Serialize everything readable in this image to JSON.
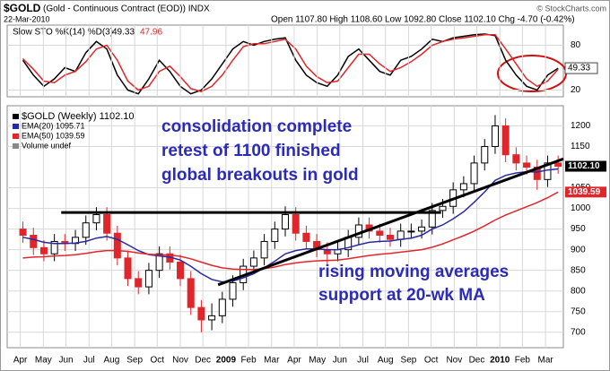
{
  "chart_data": [
    {
      "type": "stochastic",
      "symbol": "$GOLD",
      "description": "(Gold - Continuous Contract (EOD)) INDX",
      "date": "22-Mar-2010",
      "quote": "Open 1107.80  High 1108.60  Low 1092.80  Close 1102.10  Chg -4.70 (-0.42%)",
      "credit": "© StockCharts.com",
      "title": "Slow STO %K(14) %D(3)",
      "x": [
        1,
        3,
        5,
        7,
        9,
        11,
        13,
        15,
        17,
        19,
        21,
        23,
        25,
        27,
        29,
        31,
        33,
        35,
        37,
        39,
        41,
        43,
        45,
        47,
        49,
        51,
        53,
        55,
        57,
        59,
        61,
        63,
        65,
        67,
        69,
        71,
        73,
        75,
        77,
        79,
        81,
        83,
        85,
        87,
        89,
        91,
        93,
        95,
        97,
        99,
        101,
        103
      ],
      "xlim": [
        -2,
        104
      ],
      "ylim": [
        11,
        107
      ],
      "yticks": [
        20,
        80
      ],
      "grid": true,
      "series": [
        {
          "name": "%K",
          "color": "#000000",
          "values": [
            60,
            40,
            25,
            35,
            50,
            45,
            70,
            85,
            75,
            40,
            20,
            15,
            35,
            60,
            45,
            25,
            15,
            20,
            35,
            55,
            75,
            85,
            80,
            85,
            88,
            90,
            60,
            40,
            30,
            25,
            40,
            65,
            75,
            60,
            45,
            40,
            60,
            65,
            75,
            88,
            85,
            90,
            92,
            94,
            95,
            93,
            60,
            40,
            25,
            20,
            40,
            49.33
          ]
        },
        {
          "name": "%D",
          "color": "#e0262b",
          "values": [
            62,
            48,
            32,
            30,
            40,
            45,
            58,
            75,
            80,
            60,
            32,
            20,
            25,
            45,
            52,
            38,
            22,
            18,
            25,
            40,
            60,
            78,
            82,
            82,
            85,
            88,
            75,
            52,
            38,
            30,
            32,
            50,
            68,
            68,
            55,
            45,
            50,
            58,
            68,
            80,
            85,
            88,
            90,
            92,
            94,
            94,
            75,
            55,
            35,
            25,
            32,
            47.96
          ]
        }
      ]
    },
    {
      "type": "candlestick",
      "x": [
        1,
        3,
        5,
        7,
        9,
        11,
        13,
        15,
        17,
        19,
        21,
        23,
        25,
        27,
        29,
        31,
        33,
        35,
        37,
        39,
        41,
        43,
        45,
        47,
        49,
        51,
        53,
        55,
        57,
        59,
        61,
        63,
        65,
        67,
        69,
        71,
        73,
        75,
        77,
        79,
        81,
        83,
        85,
        87,
        89,
        91,
        93,
        95,
        97,
        99,
        101,
        103
      ],
      "xlim": [
        -2,
        104
      ],
      "ylim": [
        680,
        1240
      ],
      "yticks": [
        700,
        750,
        800,
        850,
        900,
        950,
        1000,
        1050,
        1150,
        1200
      ],
      "xticks": [
        {
          "value": 0.5,
          "label": "Apr"
        },
        {
          "value": 4.9,
          "label": "May"
        },
        {
          "value": 9.2,
          "label": "Jun"
        },
        {
          "value": 13.6,
          "label": "Jul"
        },
        {
          "value": 17.9,
          "label": "Aug"
        },
        {
          "value": 22.3,
          "label": "Sep"
        },
        {
          "value": 26.6,
          "label": "Oct"
        },
        {
          "value": 31.0,
          "label": "Nov"
        },
        {
          "value": 35.3,
          "label": "Dec"
        },
        {
          "value": 39.7,
          "label": "2009"
        },
        {
          "value": 44.0,
          "label": "Feb"
        },
        {
          "value": 48.4,
          "label": "Mar"
        },
        {
          "value": 52.7,
          "label": "Apr"
        },
        {
          "value": 57.1,
          "label": "May"
        },
        {
          "value": 61.4,
          "label": "Jun"
        },
        {
          "value": 65.8,
          "label": "Jul"
        },
        {
          "value": 70.1,
          "label": "Aug"
        },
        {
          "value": 74.5,
          "label": "Sep"
        },
        {
          "value": 78.8,
          "label": "Oct"
        },
        {
          "value": 83.2,
          "label": "Nov"
        },
        {
          "value": 87.5,
          "label": "Dec"
        },
        {
          "value": 91.9,
          "label": "2010"
        },
        {
          "value": 96.2,
          "label": "Feb"
        },
        {
          "value": 100.6,
          "label": "Mar"
        }
      ],
      "grid": true,
      "candles": {
        "name": "$GOLD (Weekly) 1102.10",
        "last_label": "1102.10",
        "up_color": "#000000",
        "down_color": "#e0262b",
        "open": [
          950,
          935,
          905,
          890,
          920,
          915,
          930,
          965,
          985,
          940,
          880,
          830,
          810,
          850,
          890,
          870,
          830,
          760,
          730,
          740,
          780,
          820,
          860,
          880,
          920,
          950,
          985,
          940,
          920,
          900,
          890,
          900,
          930,
          960,
          945,
          935,
          925,
          945,
          945,
          955,
          995,
          1005,
          1045,
          1060,
          1110,
          1150,
          1200,
          1130,
          1110,
          1100,
          1070,
          1110
        ],
        "high": [
          968,
          953,
          923,
          938,
          938,
          948,
          983,
          1003,
          1003,
          958,
          898,
          848,
          868,
          908,
          908,
          888,
          848,
          778,
          770,
          798,
          838,
          878,
          898,
          938,
          968,
          1005,
          1003,
          958,
          938,
          918,
          918,
          948,
          978,
          978,
          963,
          953,
          963,
          963,
          973,
          1013,
          1023,
          1063,
          1078,
          1128,
          1168,
          1226,
          1218,
          1148,
          1128,
          1118,
          1128,
          1128
        ],
        "low": [
          917,
          887,
          872,
          872,
          897,
          897,
          912,
          947,
          922,
          862,
          812,
          792,
          792,
          832,
          852,
          812,
          742,
          700,
          705,
          722,
          762,
          802,
          842,
          862,
          902,
          932,
          922,
          902,
          882,
          865,
          872,
          882,
          912,
          927,
          917,
          907,
          907,
          927,
          927,
          937,
          977,
          987,
          1027,
          1042,
          1092,
          1132,
          1112,
          1092,
          1082,
          1045,
          1052,
          1084
        ],
        "close": [
          935,
          905,
          890,
          920,
          915,
          930,
          965,
          985,
          940,
          880,
          830,
          810,
          850,
          890,
          870,
          830,
          760,
          730,
          740,
          780,
          820,
          860,
          880,
          920,
          950,
          985,
          940,
          920,
          900,
          890,
          900,
          930,
          960,
          945,
          935,
          925,
          945,
          945,
          955,
          995,
          1005,
          1045,
          1060,
          1110,
          1150,
          1200,
          1130,
          1110,
          1100,
          1070,
          1110,
          1102.1
        ]
      },
      "series": [
        {
          "name": "EMA(20) 1095.71",
          "color": "#2a2aa0",
          "values": [
            930,
            925,
            918,
            915,
            915,
            916,
            920,
            928,
            932,
            925,
            912,
            898,
            888,
            885,
            882,
            875,
            860,
            842,
            828,
            822,
            824,
            832,
            842,
            856,
            872,
            890,
            898,
            902,
            902,
            900,
            900,
            905,
            912,
            918,
            920,
            921,
            925,
            928,
            935,
            950,
            960,
            975,
            992,
            1015,
            1040,
            1068,
            1080,
            1086,
            1089,
            1088,
            1093,
            1095.71
          ]
        },
        {
          "name": "EMA(50) 1039.59",
          "color": "#e0262b",
          "last_label": "1039.59",
          "values": [
            880,
            882,
            883,
            885,
            886,
            888,
            891,
            895,
            898,
            898,
            896,
            892,
            889,
            888,
            887,
            884,
            878,
            870,
            862,
            856,
            853,
            852,
            852,
            854,
            858,
            864,
            868,
            871,
            873,
            874,
            875,
            878,
            882,
            886,
            889,
            891,
            894,
            897,
            900,
            906,
            914,
            924,
            934,
            945,
            958,
            972,
            984,
            994,
            1004,
            1014,
            1026,
            1039.59
          ]
        }
      ],
      "extra_legend": "Volume undef",
      "lines": [
        {
          "x": [
            8.3,
            80.7
          ],
          "y": [
            990,
            990
          ]
        },
        {
          "x": [
            38.2,
            104
          ],
          "y": [
            815,
            1120
          ]
        }
      ],
      "annotations": [
        "consolidation complete",
        "retest of 1100 finished",
        "global breakouts in gold",
        "rising moving averages",
        "support at 20-wk MA"
      ]
    }
  ]
}
